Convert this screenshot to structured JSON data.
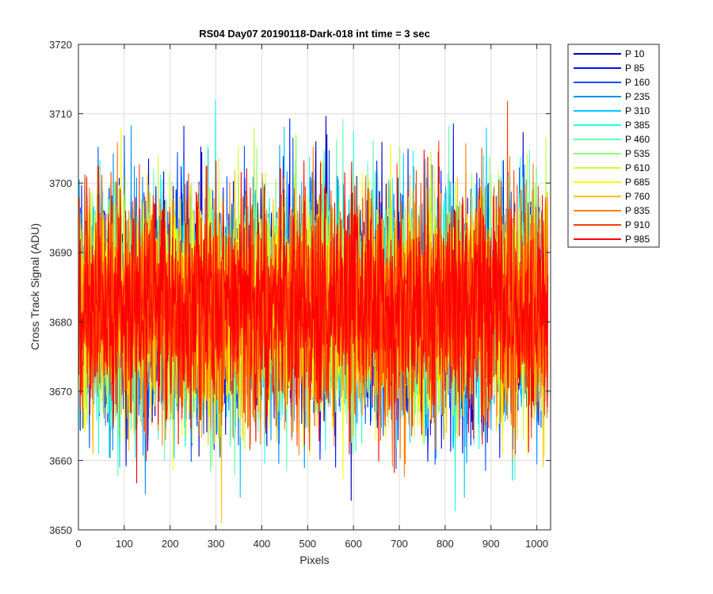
{
  "chart_data": {
    "type": "line",
    "title": "RS04 Day07 20190118-Dark-018 int time = 3 sec",
    "xlabel": "Pixels",
    "ylabel": "Cross Track Signal (ADU)",
    "xlim": [
      0,
      1030
    ],
    "ylim": [
      3650,
      3720
    ],
    "xticks": [
      0,
      100,
      200,
      300,
      400,
      500,
      600,
      700,
      800,
      900,
      1000
    ],
    "yticks": [
      3650,
      3660,
      3670,
      3680,
      3690,
      3700,
      3710,
      3720
    ],
    "grid": true,
    "legend_position": "outside-top-right",
    "n_pixels": 1024,
    "noise": {
      "mean": 3682,
      "sd": 8
    },
    "series": [
      {
        "name": "P 10",
        "color": "#0000bf",
        "mean": 3682,
        "sd": 8,
        "seed": 11
      },
      {
        "name": "P 85",
        "color": "#0010ff",
        "mean": 3682,
        "sd": 8,
        "seed": 23
      },
      {
        "name": "P 160",
        "color": "#0050ff",
        "mean": 3682,
        "sd": 8,
        "seed": 37
      },
      {
        "name": "P 235",
        "color": "#0090ff",
        "mean": 3682,
        "sd": 8,
        "seed": 41
      },
      {
        "name": "P 310",
        "color": "#00c8ff",
        "mean": 3682,
        "sd": 8,
        "seed": 53
      },
      {
        "name": "P 385",
        "color": "#20ffdf",
        "mean": 3682,
        "sd": 8,
        "seed": 67
      },
      {
        "name": "P 460",
        "color": "#60ffb0",
        "mean": 3682,
        "sd": 8,
        "seed": 71
      },
      {
        "name": "P 535",
        "color": "#90ff70",
        "mean": 3682,
        "sd": 8,
        "seed": 83
      },
      {
        "name": "P 610",
        "color": "#c8ff30",
        "mean": 3682,
        "sd": 8,
        "seed": 97
      },
      {
        "name": "P 685",
        "color": "#ffff00",
        "mean": 3682,
        "sd": 8,
        "seed": 101
      },
      {
        "name": "P 760",
        "color": "#ffc000",
        "mean": 3682,
        "sd": 8,
        "seed": 113
      },
      {
        "name": "P 835",
        "color": "#ff8000",
        "mean": 3682,
        "sd": 8,
        "seed": 127
      },
      {
        "name": "P 910",
        "color": "#ff4000",
        "mean": 3682,
        "sd": 8,
        "seed": 131
      },
      {
        "name": "P 985",
        "color": "#ff0000",
        "mean": 3682,
        "sd": 8,
        "seed": 149
      }
    ]
  }
}
